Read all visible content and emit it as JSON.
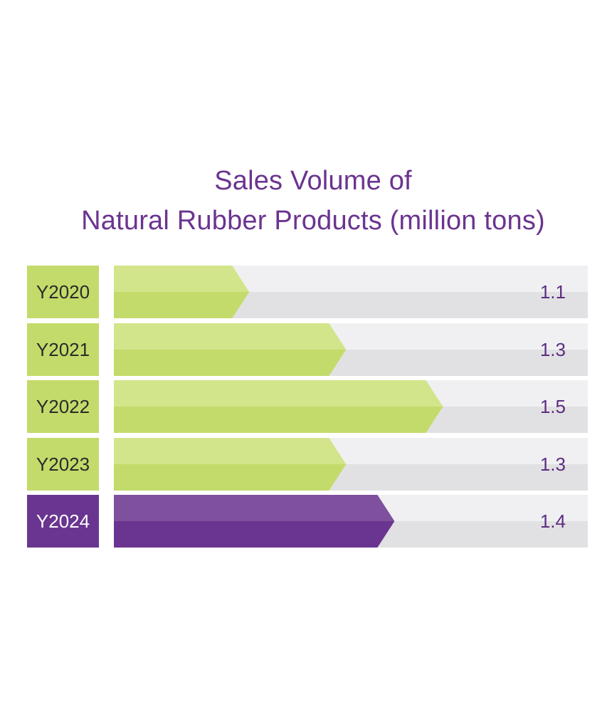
{
  "title_line1": "Sales Volume of",
  "title_line2": "Natural Rubber Products (million tons)",
  "colors": {
    "title": "#6b3490",
    "track_top": "#f0f0f2",
    "track_bottom": "#e1e1e3",
    "green_top": "#d2e58a",
    "green_bottom": "#c3db6a",
    "green_label": "#c3db6a",
    "purple_top": "#7e509d",
    "purple_bottom": "#6a3590",
    "purple_label": "#6a3590",
    "label_text_dark": "#2b2b2b",
    "label_text_light": "#ffffff",
    "value_text": "#5d2d82"
  },
  "chart_data": {
    "type": "bar",
    "orientation": "horizontal",
    "title": "Sales Volume of Natural Rubber Products (million tons)",
    "categories": [
      "Y2020",
      "Y2021",
      "Y2022",
      "Y2023",
      "Y2024"
    ],
    "values": [
      1.1,
      1.3,
      1.5,
      1.3,
      1.4
    ],
    "value_labels": [
      "1.1",
      "1.3",
      "1.5",
      "1.3",
      "1.4"
    ],
    "highlight_index": 4,
    "xlim": [
      0.9,
      1.8
    ],
    "grid": false,
    "legend": "none"
  }
}
